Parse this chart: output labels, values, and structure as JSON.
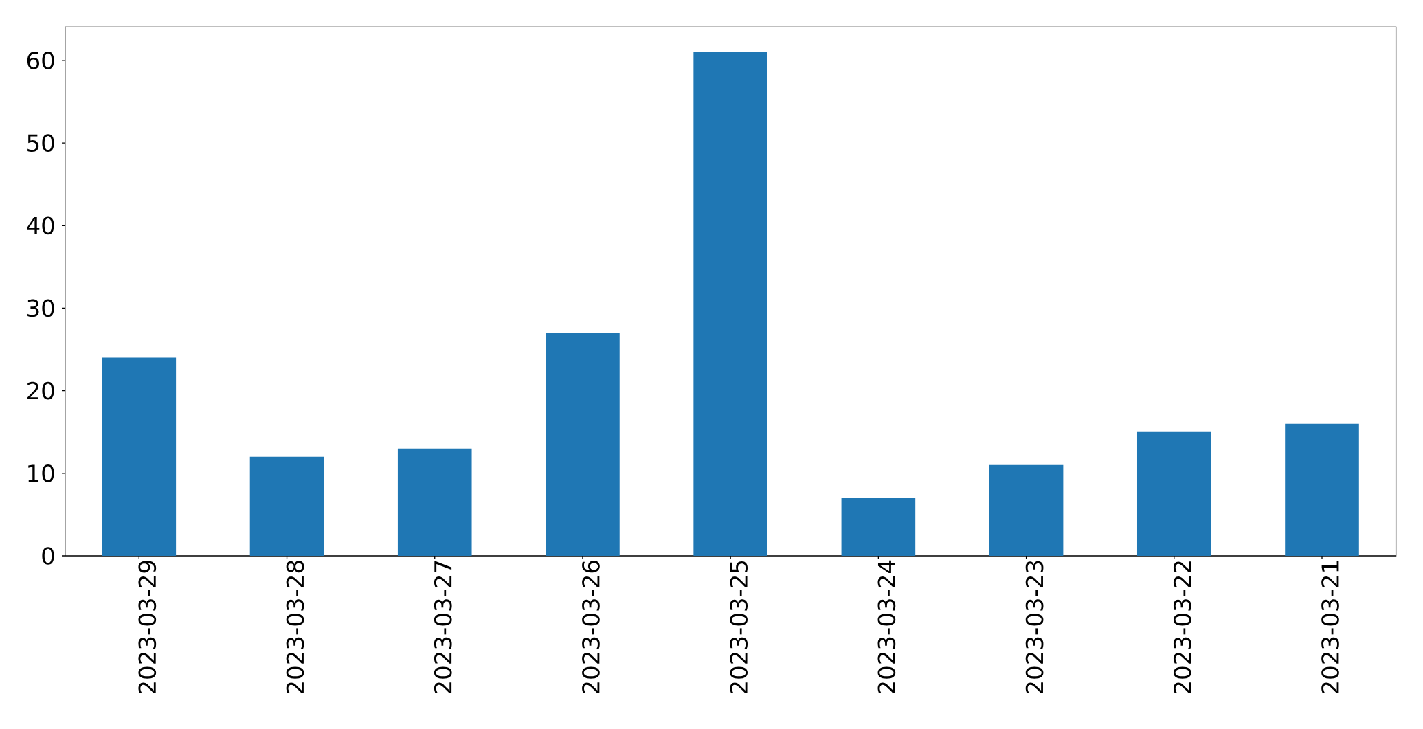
{
  "chart_data": {
    "type": "bar",
    "categories": [
      "2023-03-29",
      "2023-03-28",
      "2023-03-27",
      "2023-03-26",
      "2023-03-25",
      "2023-03-24",
      "2023-03-23",
      "2023-03-22",
      "2023-03-21"
    ],
    "values": [
      24,
      12,
      13,
      27,
      61,
      7,
      11,
      15,
      16
    ],
    "color": "#1f77b4",
    "ylim": [
      0,
      64.05
    ],
    "yticks": [
      0,
      10,
      20,
      30,
      40,
      50,
      60
    ]
  }
}
